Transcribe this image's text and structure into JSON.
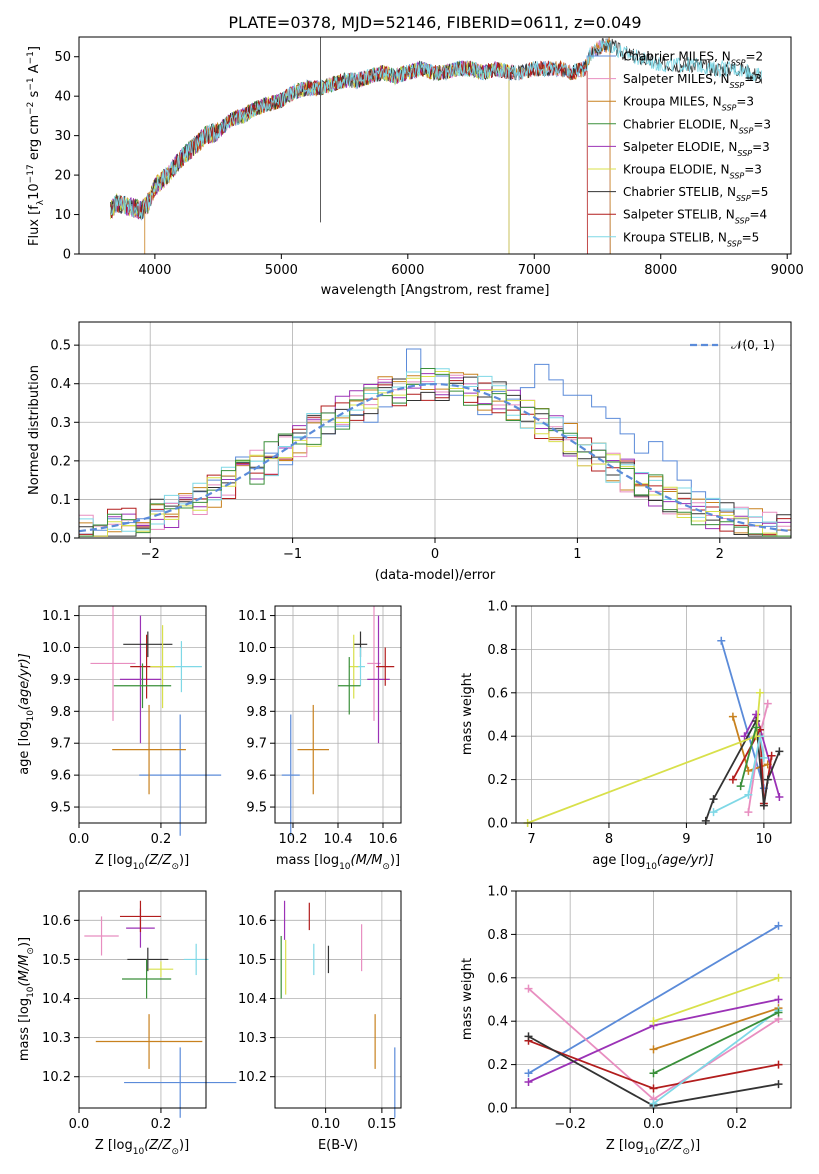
{
  "chart_data": [
    {
      "type": "line",
      "title": "PLATE=0378, MJD=52146, FIBERID=0611, z=0.049",
      "xlabel": "wavelength [Angstrom, rest frame]",
      "ylabel_prefix": "Flux [f",
      "ylabel_lambda": "λ",
      "ylabel_mid": "10",
      "ylabel_exp": "−17",
      "ylabel_unit": " erg cm",
      "ylabel_cm_exp": "−2",
      "ylabel_s": " s",
      "ylabel_s_exp": "−1",
      "ylabel_A": " A",
      "ylabel_A_exp": "−1",
      "ylabel_end": "]",
      "xlim": [
        3400,
        9030
      ],
      "ylim": [
        0,
        55
      ],
      "xticks": [
        "4000",
        "5000",
        "6000",
        "7000",
        "8000",
        "9000"
      ],
      "yticks": [
        "0",
        "10",
        "20",
        "30",
        "40",
        "50"
      ],
      "grid": false,
      "legend_position": "right",
      "spectrum_shape": {
        "x": [
          3650,
          3700,
          3800,
          3900,
          3950,
          4000,
          4100,
          4200,
          4300,
          4400,
          4500,
          4600,
          4700,
          4800,
          4900,
          5000,
          5100,
          5200,
          5300,
          5400,
          5500,
          5600,
          5700,
          5800,
          5900,
          6000,
          6100,
          6200,
          6300,
          6400,
          6500,
          6600,
          6700,
          6800,
          6900,
          7000,
          7100,
          7200,
          7300,
          7400,
          7450,
          7500,
          7550,
          7600,
          7700,
          7800,
          7900,
          8000,
          8100,
          8200,
          8300,
          8400,
          8500,
          8600,
          8700,
          8800
        ],
        "y": [
          11,
          13,
          12,
          11,
          13,
          17,
          20,
          24,
          27,
          30,
          31,
          34,
          35,
          37,
          38,
          39,
          41,
          42,
          42,
          43,
          44,
          44,
          45,
          46,
          45,
          46,
          47,
          46,
          46,
          47,
          47,
          46,
          47,
          46,
          46,
          47,
          47,
          47,
          46,
          47,
          51,
          52,
          53,
          53,
          51,
          50,
          49,
          48,
          48,
          48,
          48,
          47,
          47,
          47,
          46,
          45
        ]
      },
      "series": [
        {
          "name": "Chabrier MILES, N",
          "sub": "SSP",
          "eq": "=2",
          "color": "#5b8bd9",
          "end": 7600
        },
        {
          "name": "Salpeter MILES, N",
          "sub": "SSP",
          "eq": "=3",
          "color": "#e88ec0",
          "end": 7600
        },
        {
          "name": "Kroupa MILES, N",
          "sub": "SSP",
          "eq": "=3",
          "color": "#c8811e",
          "end": 7600
        },
        {
          "name": "Chabrier ELODIE, N",
          "sub": "SSP",
          "eq": "=3",
          "color": "#3a8f3a",
          "end": 6800
        },
        {
          "name": "Salpeter ELODIE, N",
          "sub": "SSP",
          "eq": "=3",
          "color": "#9b32b6",
          "end": 6800
        },
        {
          "name": "Kroupa ELODIE, N",
          "sub": "SSP",
          "eq": "=3",
          "color": "#d8e04a",
          "end": 6800
        },
        {
          "name": "Chabrier STELIB, N",
          "sub": "SSP",
          "eq": "=5",
          "color": "#333333",
          "end": 8800
        },
        {
          "name": "Salpeter STELIB, N",
          "sub": "SSP",
          "eq": "=4",
          "color": "#b21d1d",
          "end": 7420
        },
        {
          "name": "Kroupa STELIB, N",
          "sub": "SSP",
          "eq": "=5",
          "color": "#7fd8e6",
          "end": 8800
        }
      ]
    },
    {
      "type": "bar",
      "xlabel": "(data-model)/error",
      "ylabel": "Normed distribution",
      "xlim": [
        -2.5,
        2.5
      ],
      "ylim": [
        0,
        0.56
      ],
      "xticks": [
        "−2",
        "−1",
        "0",
        "1",
        "2"
      ],
      "yticks": [
        "0.0",
        "0.1",
        "0.2",
        "0.3",
        "0.4",
        "0.5"
      ],
      "grid": true,
      "legend_position": "top-right",
      "legend": {
        "label": "𝒩(0, 1)",
        "color": "#5b8bd9"
      },
      "bins": {
        "start": -2.5,
        "width": 0.1,
        "count": 50
      },
      "hist_colors": [
        "#5b8bd9",
        "#c8811e",
        "#e88ec0",
        "#9b32b6",
        "#b21d1d",
        "#333333",
        "#7fd8e6",
        "#d8e04a",
        "#3a8f3a"
      ],
      "blue_heights": [
        0.01,
        0.02,
        0.05,
        0.04,
        0.05,
        0.07,
        0.09,
        0.1,
        0.12,
        0.15,
        0.16,
        0.21,
        0.18,
        0.22,
        0.19,
        0.26,
        0.26,
        0.27,
        0.29,
        0.32,
        0.3,
        0.34,
        0.35,
        0.49,
        0.4,
        0.42,
        0.37,
        0.4,
        0.32,
        0.38,
        0.36,
        0.39,
        0.45,
        0.41,
        0.37,
        0.37,
        0.34,
        0.31,
        0.27,
        0.22,
        0.25,
        0.2,
        0.15,
        0.12,
        0.1,
        0.07,
        0.05,
        0.04,
        0.03,
        0.02
      ]
    },
    {
      "type": "scatter",
      "xlabel": "Z [log",
      "xlabel_sub": "10",
      "xlabel_tail": "(Z/Z",
      "xlabel_sun": "⊙",
      "xlabel_close": ")]",
      "ylabel": "age  [log",
      "ylabel_sub": "10",
      "ylabel_tail": "(age/yr)]",
      "xlim": [
        0.0,
        0.31
      ],
      "ylim": [
        9.45,
        10.13
      ],
      "xticks": [
        "0.0",
        "0.2"
      ],
      "yticks": [
        "9.5",
        "9.6",
        "9.7",
        "9.8",
        "9.9",
        "10.0",
        "10.1"
      ],
      "points": [
        {
          "x": 0.247,
          "y": 9.6,
          "ex": 0.1,
          "ey": 0.19,
          "color": "#5b8bd9"
        },
        {
          "x": 0.171,
          "y": 9.68,
          "ex": 0.09,
          "ey": 0.14,
          "color": "#c8811e"
        },
        {
          "x": 0.083,
          "y": 9.95,
          "ex": 0.055,
          "ey": 0.18,
          "color": "#e88ec0"
        },
        {
          "x": 0.15,
          "y": 9.9,
          "ex": 0.05,
          "ey": 0.2,
          "color": "#9b32b6"
        },
        {
          "x": 0.165,
          "y": 9.94,
          "ex": 0.04,
          "ey": 0.1,
          "color": "#b21d1d"
        },
        {
          "x": 0.168,
          "y": 10.01,
          "ex": 0.06,
          "ey": 0.04,
          "color": "#333333"
        },
        {
          "x": 0.25,
          "y": 9.94,
          "ex": 0.05,
          "ey": 0.08,
          "color": "#7fd8e6"
        },
        {
          "x": 0.204,
          "y": 9.94,
          "ex": 0.03,
          "ey": 0.13,
          "color": "#d8e04a"
        },
        {
          "x": 0.155,
          "y": 9.88,
          "ex": 0.07,
          "ey": 0.07,
          "color": "#3a8f3a"
        }
      ]
    },
    {
      "type": "scatter",
      "xlabel": "mass [log",
      "xlabel_sub": "10",
      "xlabel_tail": "(M/M",
      "xlabel_sun": "⊙",
      "xlabel_close": ")]",
      "xlim": [
        10.12,
        10.68
      ],
      "ylim": [
        9.45,
        10.13
      ],
      "xticks": [
        "10.2",
        "10.4",
        "10.6"
      ],
      "yticks": [
        "9.5",
        "9.6",
        "9.7",
        "9.8",
        "9.9",
        "10.0",
        "10.1"
      ],
      "points": [
        {
          "x": 10.19,
          "y": 9.6,
          "ex": 0.04,
          "ey": 0.19,
          "color": "#5b8bd9"
        },
        {
          "x": 10.29,
          "y": 9.68,
          "ex": 0.07,
          "ey": 0.14,
          "color": "#c8811e"
        },
        {
          "x": 10.56,
          "y": 9.95,
          "ex": 0.03,
          "ey": 0.18,
          "color": "#e88ec0"
        },
        {
          "x": 10.58,
          "y": 9.9,
          "ex": 0.05,
          "ey": 0.2,
          "color": "#9b32b6"
        },
        {
          "x": 10.61,
          "y": 9.94,
          "ex": 0.04,
          "ey": 0.06,
          "color": "#b21d1d"
        },
        {
          "x": 10.5,
          "y": 10.01,
          "ex": 0.03,
          "ey": 0.04,
          "color": "#333333"
        },
        {
          "x": 10.5,
          "y": 9.94,
          "ex": 0.02,
          "ey": 0.06,
          "color": "#7fd8e6"
        },
        {
          "x": 10.47,
          "y": 9.94,
          "ex": 0.02,
          "ey": 0.1,
          "color": "#d8e04a"
        },
        {
          "x": 10.45,
          "y": 9.88,
          "ex": 0.05,
          "ey": 0.09,
          "color": "#3a8f3a"
        }
      ]
    },
    {
      "type": "line",
      "xlabel": "age  [log",
      "xlabel_sub": "10",
      "xlabel_tail": "(age/yr)]",
      "ylabel": "mass weight",
      "xlim": [
        6.8,
        10.35
      ],
      "ylim": [
        0,
        1.0
      ],
      "xticks": [
        "7",
        "8",
        "9",
        "10"
      ],
      "yticks": [
        "0.0",
        "0.2",
        "0.4",
        "0.6",
        "0.8",
        "1.0"
      ],
      "grid": true,
      "series": [
        {
          "color": "#5b8bd9",
          "x": [
            9.45,
            10.0
          ],
          "y": [
            0.84,
            0.16
          ]
        },
        {
          "color": "#c8811e",
          "x": [
            9.6,
            9.8,
            10.05
          ],
          "y": [
            0.49,
            0.24,
            0.27
          ]
        },
        {
          "color": "#e88ec0",
          "x": [
            9.8,
            9.95,
            10.05
          ],
          "y": [
            0.05,
            0.41,
            0.55
          ]
        },
        {
          "color": "#9b32b6",
          "x": [
            9.75,
            9.9,
            10.2
          ],
          "y": [
            0.4,
            0.5,
            0.12
          ]
        },
        {
          "color": "#b21d1d",
          "x": [
            9.6,
            9.95,
            10.0,
            10.1
          ],
          "y": [
            0.2,
            0.43,
            0.09,
            0.31
          ]
        },
        {
          "color": "#333333",
          "x": [
            9.25,
            9.35,
            9.9,
            10.0,
            10.05,
            10.2
          ],
          "y": [
            0.01,
            0.11,
            0.47,
            0.08,
            0.2,
            0.33
          ]
        },
        {
          "color": "#7fd8e6",
          "x": [
            9.35,
            9.8,
            9.95,
            10.0
          ],
          "y": [
            0.05,
            0.13,
            0.4,
            0.3
          ]
        },
        {
          "color": "#d8e04a",
          "x": [
            6.95,
            9.9,
            9.95
          ],
          "y": [
            0.0,
            0.4,
            0.6
          ]
        },
        {
          "color": "#3a8f3a",
          "x": [
            9.7,
            9.9
          ],
          "y": [
            0.17,
            0.44
          ]
        }
      ]
    },
    {
      "type": "scatter",
      "xlabel": "Z [log",
      "xlabel_sub": "10",
      "xlabel_tail": "(Z/Z",
      "xlabel_sun": "⊙",
      "xlabel_close": ")]",
      "ylabel": "mass [log",
      "ylabel_sub": "10",
      "ylabel_tail": "(M/M",
      "ylabel_sun": "⊙",
      "ylabel_close": ")]",
      "xlim": [
        0.0,
        0.31
      ],
      "ylim": [
        10.12,
        10.675
      ],
      "xticks": [
        "0.0",
        "0.2"
      ],
      "yticks": [
        "10.2",
        "10.3",
        "10.4",
        "10.5",
        "10.6"
      ],
      "points": [
        {
          "x": 0.247,
          "y": 10.185,
          "ex": 0.137,
          "ey": 0.09,
          "color": "#5b8bd9"
        },
        {
          "x": 0.171,
          "y": 10.29,
          "ex": 0.13,
          "ey": 0.07,
          "color": "#c8811e"
        },
        {
          "x": 0.055,
          "y": 10.56,
          "ex": 0.042,
          "ey": 0.05,
          "color": "#e88ec0"
        },
        {
          "x": 0.15,
          "y": 10.58,
          "ex": 0.035,
          "ey": 0.05,
          "color": "#9b32b6"
        },
        {
          "x": 0.15,
          "y": 10.61,
          "ex": 0.05,
          "ey": 0.04,
          "color": "#b21d1d"
        },
        {
          "x": 0.168,
          "y": 10.5,
          "ex": 0.05,
          "ey": 0.03,
          "color": "#333333"
        },
        {
          "x": 0.286,
          "y": 10.5,
          "ex": 0.03,
          "ey": 0.04,
          "color": "#7fd8e6"
        },
        {
          "x": 0.2,
          "y": 10.475,
          "ex": 0.03,
          "ey": 0.02,
          "color": "#d8e04a"
        },
        {
          "x": 0.165,
          "y": 10.45,
          "ex": 0.06,
          "ey": 0.05,
          "color": "#3a8f3a"
        }
      ]
    },
    {
      "type": "scatter",
      "xlabel": "E(B-V)",
      "xlim": [
        0.055,
        0.167
      ],
      "ylim": [
        10.12,
        10.675
      ],
      "xticks": [
        "0.10",
        "0.15"
      ],
      "yticks": [
        "10.2",
        "10.3",
        "10.4",
        "10.5",
        "10.6"
      ],
      "points": [
        {
          "x": 0.1615,
          "y": 10.185,
          "ey": 0.09,
          "color": "#5b8bd9"
        },
        {
          "x": 0.144,
          "y": 10.29,
          "ey": 0.07,
          "color": "#c8811e"
        },
        {
          "x": 0.132,
          "y": 10.53,
          "ey": 0.06,
          "color": "#e88ec0"
        },
        {
          "x": 0.0635,
          "y": 10.6,
          "ey": 0.05,
          "color": "#9b32b6"
        },
        {
          "x": 0.0855,
          "y": 10.61,
          "ey": 0.035,
          "color": "#b21d1d"
        },
        {
          "x": 0.1025,
          "y": 10.5,
          "ey": 0.035,
          "color": "#333333"
        },
        {
          "x": 0.0895,
          "y": 10.5,
          "ey": 0.04,
          "color": "#7fd8e6"
        },
        {
          "x": 0.0645,
          "y": 10.48,
          "ey": 0.07,
          "color": "#d8e04a"
        },
        {
          "x": 0.0605,
          "y": 10.48,
          "ey": 0.08,
          "color": "#3a8f3a"
        }
      ]
    },
    {
      "type": "line",
      "xlabel": "Z [log",
      "xlabel_sub": "10",
      "xlabel_tail": "(Z/Z",
      "xlabel_sun": "⊙",
      "xlabel_close": ")]",
      "ylabel": "mass weight",
      "xlim": [
        -0.33,
        0.33
      ],
      "ylim": [
        0,
        1.0
      ],
      "xticks": [
        "−0.2",
        "0.0",
        "0.2"
      ],
      "yticks": [
        "0.0",
        "0.2",
        "0.4",
        "0.6",
        "0.8",
        "1.0"
      ],
      "grid": true,
      "series": [
        {
          "color": "#5b8bd9",
          "x": [
            -0.3,
            0.3
          ],
          "y": [
            0.16,
            0.84
          ]
        },
        {
          "color": "#c8811e",
          "x": [
            0.0,
            0.3
          ],
          "y": [
            0.27,
            0.46
          ]
        },
        {
          "color": "#e88ec0",
          "x": [
            -0.3,
            0.0,
            0.3
          ],
          "y": [
            0.55,
            0.04,
            0.41
          ]
        },
        {
          "color": "#9b32b6",
          "x": [
            -0.3,
            0.0,
            0.3
          ],
          "y": [
            0.12,
            0.38,
            0.5
          ]
        },
        {
          "color": "#b21d1d",
          "x": [
            -0.3,
            0.0,
            0.3
          ],
          "y": [
            0.31,
            0.09,
            0.2
          ]
        },
        {
          "color": "#333333",
          "x": [
            -0.3,
            0.0,
            0.3
          ],
          "y": [
            0.33,
            0.01,
            0.11
          ]
        },
        {
          "color": "#7fd8e6",
          "x": [
            0.0,
            0.3
          ],
          "y": [
            0.02,
            0.45
          ]
        },
        {
          "color": "#d8e04a",
          "x": [
            0.0,
            0.3
          ],
          "y": [
            0.4,
            0.6
          ]
        },
        {
          "color": "#3a8f3a",
          "x": [
            0.0,
            0.3
          ],
          "y": [
            0.16,
            0.44
          ]
        }
      ]
    }
  ]
}
